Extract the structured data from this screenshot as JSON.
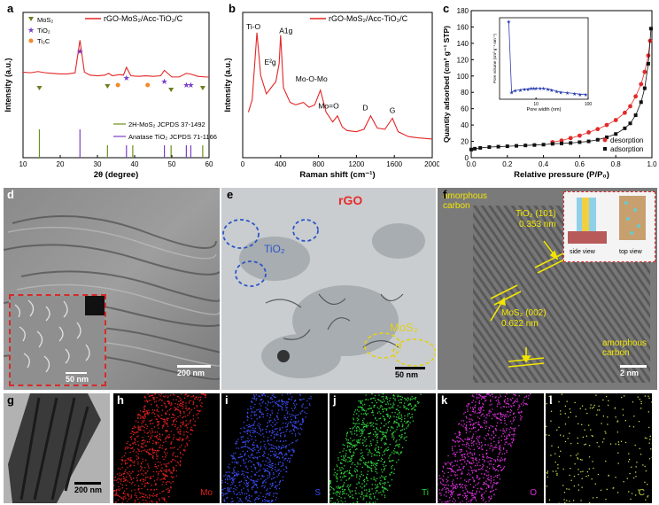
{
  "labels": {
    "a": "a",
    "b": "b",
    "c": "c",
    "d": "d",
    "e": "e",
    "f": "f",
    "g": "g",
    "h": "h",
    "i": "i",
    "j": "j",
    "k": "k",
    "l": "l"
  },
  "panel_a": {
    "legend_title": "rGO-MoS₂/Acc-TiO₂/C",
    "markers": [
      {
        "label": "MoS₂",
        "color": "#6b7f1f",
        "shape": "tri"
      },
      {
        "label": "TiO₂",
        "color": "#7a3fc9",
        "shape": "star"
      },
      {
        "label": "Ti₂C",
        "color": "#f08a2a",
        "shape": "dot"
      }
    ],
    "ref_labels": [
      "2H-MoS₂ JCPDS 37-1492",
      "Anatase TiO₂ JCPDS 71-1166"
    ],
    "colors": {
      "line": "#e42525",
      "mos2": "#6b8f1f",
      "tio2": "#7a3fc9"
    }
  },
  "panel_b": {
    "legend_title": "rGO-MoS₂/Acc-TiO₂/C",
    "peaks": [
      "Ti-O",
      "E²g",
      "A1g",
      "Mo-O-Mo",
      "Mo=O",
      "D",
      "G"
    ]
  },
  "panel_c": {
    "legend": [
      "desorption",
      "adsorption"
    ],
    "inset_xlabel": "Pore width (nm)",
    "inset_ylabel": "Pore volume (cm³ g⁻¹ nm⁻¹)",
    "colors": {
      "desorption": "#e32a2a",
      "adsorption": "#111111",
      "inset": "#2a3fb0"
    }
  },
  "panel_d": {
    "scalebar": "200 nm",
    "inset_scalebar": "50 nm"
  },
  "panel_e": {
    "rgo": "rGO",
    "tio2": "TiO₂",
    "mos2": "MoS₂",
    "scalebar": "50 nm"
  },
  "panel_f": {
    "amorphous1": "amorphous carbon",
    "tio2_plane": "TiO₂ (101)",
    "tio2_d": "0.353 nm",
    "mos2_plane": "MoS₂ (002)",
    "mos2_d": "0.622 nm",
    "amorphous2": "amorphous carbon",
    "side": "side view",
    "top": "top view",
    "scalebar": "2 nm"
  },
  "panel_g": {
    "scalebar": "200 nm"
  },
  "maps": [
    {
      "key": "h",
      "element": "Mo",
      "color": "#e02020"
    },
    {
      "key": "i",
      "element": "S",
      "color": "#3a4cf0"
    },
    {
      "key": "j",
      "element": "Ti",
      "color": "#2fd13a"
    },
    {
      "key": "k",
      "element": "O",
      "color": "#d62fd6"
    },
    {
      "key": "l",
      "element": "C",
      "color": "#c8d84a"
    }
  ],
  "chart_data": [
    {
      "type": "line",
      "title": "",
      "xlabel": "2θ (degree)",
      "ylabel": "Intensity (a.u.)",
      "xlim": [
        10,
        60
      ],
      "xticks": [
        10,
        20,
        30,
        40,
        50,
        60
      ],
      "series": [
        {
          "name": "rGO-MoS₂/Acc-TiO₂/C",
          "x": [
            10,
            12,
            14,
            16,
            18,
            20,
            22,
            24,
            25.3,
            26.5,
            28,
            30,
            32,
            33,
            34,
            35,
            36,
            37,
            37.8,
            39,
            41,
            43,
            45,
            47,
            48,
            50,
            52,
            53.9,
            55,
            57,
            59,
            60
          ],
          "y": [
            0.42,
            0.41,
            0.43,
            0.41,
            0.4,
            0.39,
            0.39,
            0.41,
            0.95,
            0.42,
            0.37,
            0.36,
            0.37,
            0.4,
            0.36,
            0.37,
            0.38,
            0.37,
            0.5,
            0.36,
            0.35,
            0.36,
            0.35,
            0.36,
            0.45,
            0.34,
            0.34,
            0.4,
            0.39,
            0.35,
            0.34,
            0.34
          ]
        }
      ],
      "reference_lines": {
        "2H-MoS₂ JCPDS 37-1492": [
          14.4,
          32.7,
          39.5,
          49.8,
          58.3
        ],
        "Anatase TiO₂ JCPDS 71-1166": [
          25.3,
          37.8,
          48.0,
          53.9,
          55.1
        ]
      }
    },
    {
      "type": "line",
      "title": "",
      "xlabel": "Raman shift (cm⁻¹)",
      "ylabel": "Intensity (a.u.)",
      "xlim": [
        0,
        2000
      ],
      "xticks": [
        0,
        400,
        800,
        1200,
        1600,
        2000
      ],
      "series": [
        {
          "name": "rGO-MoS₂/Acc-TiO₂/C",
          "x": [
            60,
            100,
            150,
            190,
            250,
            300,
            350,
            385,
            400,
            430,
            500,
            560,
            640,
            700,
            760,
            820,
            880,
            950,
            1000,
            1050,
            1100,
            1200,
            1280,
            1350,
            1420,
            1500,
            1580,
            1640,
            1750,
            1850,
            2000
          ],
          "y": [
            0.3,
            0.4,
            0.95,
            0.6,
            0.45,
            0.5,
            0.55,
            0.7,
            0.93,
            0.5,
            0.38,
            0.36,
            0.38,
            0.34,
            0.36,
            0.48,
            0.3,
            0.22,
            0.27,
            0.18,
            0.15,
            0.14,
            0.16,
            0.27,
            0.17,
            0.16,
            0.25,
            0.14,
            0.1,
            0.09,
            0.08
          ]
        }
      ]
    },
    {
      "type": "line",
      "title": "",
      "xlabel": "Relative pressure (P/P₀)",
      "ylabel": "Quantity adsorbed (cm³ g⁻¹ STP)",
      "xlim": [
        0,
        1
      ],
      "ylim": [
        0,
        180
      ],
      "xticks": [
        0,
        0.2,
        0.4,
        0.6,
        0.8,
        1.0
      ],
      "yticks": [
        0,
        20,
        40,
        60,
        80,
        100,
        120,
        140,
        160,
        180
      ],
      "series": [
        {
          "name": "desorption",
          "x": [
            0.45,
            0.5,
            0.55,
            0.6,
            0.65,
            0.7,
            0.75,
            0.8,
            0.85,
            0.88,
            0.91,
            0.94,
            0.96,
            0.98,
            0.99
          ],
          "y": [
            19,
            21,
            24,
            27,
            31,
            35,
            40,
            46,
            55,
            63,
            75,
            90,
            105,
            125,
            143
          ]
        },
        {
          "name": "adsorption",
          "x": [
            0.0,
            0.02,
            0.05,
            0.1,
            0.15,
            0.2,
            0.25,
            0.3,
            0.35,
            0.4,
            0.45,
            0.5,
            0.55,
            0.6,
            0.65,
            0.7,
            0.75,
            0.8,
            0.85,
            0.88,
            0.91,
            0.94,
            0.96,
            0.98,
            0.995
          ],
          "y": [
            10,
            11,
            12,
            13,
            13.5,
            14,
            14.5,
            15,
            15.5,
            16,
            17,
            17.5,
            18,
            19,
            20,
            22,
            25,
            29,
            36,
            42,
            52,
            68,
            85,
            115,
            158
          ]
        }
      ],
      "inset": {
        "xlabel": "Pore width (nm)",
        "ylabel": "Pore volume (cm³ g⁻¹ nm⁻¹)",
        "xscale": "log",
        "xticks": [
          10,
          100
        ],
        "x": [
          3,
          3.4,
          4,
          5,
          6,
          7,
          8,
          9,
          10,
          12,
          14,
          17,
          20,
          25,
          30,
          40,
          55,
          70,
          90
        ],
        "y": [
          1.0,
          0.05,
          0.07,
          0.08,
          0.09,
          0.09,
          0.1,
          0.1,
          0.1,
          0.1,
          0.1,
          0.09,
          0.08,
          0.06,
          0.05,
          0.04,
          0.03,
          0.02,
          0.02
        ]
      }
    }
  ]
}
